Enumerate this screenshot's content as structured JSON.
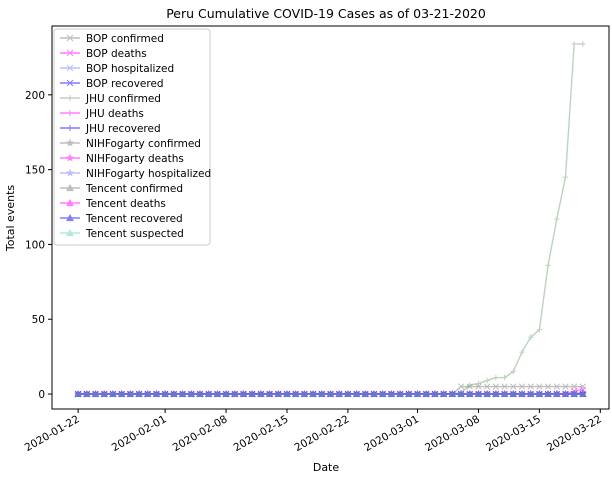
{
  "chart_data": {
    "type": "line",
    "title": "Peru Cumulative COVID-19 Cases as of 03-21-2020",
    "xlabel": "Date",
    "ylabel": "Total events",
    "x_type": "date",
    "x_range": [
      "2020-01-19",
      "2020-03-23"
    ],
    "y_range": [
      -10,
      246
    ],
    "x_ticks": [
      "2020-01-22",
      "2020-02-01",
      "2020-02-08",
      "2020-02-15",
      "2020-02-22",
      "2020-03-01",
      "2020-03-08",
      "2020-03-15",
      "2020-03-22"
    ],
    "y_ticks": [
      0,
      50,
      100,
      150,
      200
    ],
    "grid": false,
    "legend_position": "upper left",
    "series": [
      {
        "name": "BOP confirmed",
        "color": "#7f7f7f",
        "marker": "x",
        "start": "2020-01-22",
        "end": "2020-03-20",
        "points": [
          [
            "2020-03-06",
            5
          ],
          [
            "2020-03-20",
            5
          ]
        ]
      },
      {
        "name": "BOP deaths",
        "color": "#ff00ff",
        "marker": "x",
        "start": "2020-01-22",
        "end": "2020-03-20",
        "points": [
          [
            "2020-03-18",
            0
          ],
          [
            "2020-03-19",
            2
          ],
          [
            "2020-03-20",
            3
          ]
        ]
      },
      {
        "name": "BOP hospitalized",
        "color": "#7f7fff",
        "marker": "x",
        "start": "2020-01-22",
        "end": "2020-03-20",
        "points": []
      },
      {
        "name": "BOP recovered",
        "color": "#0000ff",
        "marker": "x",
        "start": "2020-01-22",
        "end": "2020-03-20",
        "points": []
      },
      {
        "name": "JHU confirmed",
        "color": "#7fa77f",
        "marker": "+",
        "start": "2020-01-22",
        "end": "2020-03-20",
        "points": [
          [
            "2020-03-05",
            0
          ],
          [
            "2020-03-06",
            1
          ],
          [
            "2020-03-07",
            6
          ],
          [
            "2020-03-08",
            7
          ],
          [
            "2020-03-09",
            9
          ],
          [
            "2020-03-10",
            11
          ],
          [
            "2020-03-11",
            11
          ],
          [
            "2020-03-12",
            15
          ],
          [
            "2020-03-13",
            28
          ],
          [
            "2020-03-14",
            38
          ],
          [
            "2020-03-15",
            43
          ],
          [
            "2020-03-16",
            86
          ],
          [
            "2020-03-17",
            117
          ],
          [
            "2020-03-18",
            145
          ],
          [
            "2020-03-19",
            234
          ],
          [
            "2020-03-20",
            234
          ]
        ]
      },
      {
        "name": "JHU deaths",
        "color": "#ff00ff",
        "marker": "+",
        "start": "2020-01-22",
        "end": "2020-03-20",
        "points": []
      },
      {
        "name": "JHU recovered",
        "color": "#0000ff",
        "marker": "+",
        "start": "2020-01-22",
        "end": "2020-03-20",
        "points": [
          [
            "2020-03-19",
            0
          ],
          [
            "2020-03-20",
            1
          ]
        ]
      },
      {
        "name": "NIHFogarty confirmed",
        "color": "#7f7f7f",
        "marker": "*",
        "start": "2020-01-22",
        "end": "2020-03-20",
        "points": []
      },
      {
        "name": "NIHFogarty deaths",
        "color": "#ff00ff",
        "marker": "*",
        "start": "2020-01-22",
        "end": "2020-03-20",
        "points": []
      },
      {
        "name": "NIHFogarty hospitalized",
        "color": "#7f7fff",
        "marker": "*",
        "start": "2020-01-22",
        "end": "2020-03-20",
        "points": []
      },
      {
        "name": "Tencent confirmed",
        "color": "#7f7f7f",
        "marker": "^",
        "start": "2020-01-22",
        "end": "2020-03-20",
        "points": []
      },
      {
        "name": "Tencent deaths",
        "color": "#ff00ff",
        "marker": "^",
        "start": "2020-01-22",
        "end": "2020-03-20",
        "points": []
      },
      {
        "name": "Tencent recovered",
        "color": "#0000ff",
        "marker": "^",
        "start": "2020-01-22",
        "end": "2020-03-20",
        "points": []
      },
      {
        "name": "Tencent suspected",
        "color": "#66d9b0",
        "marker": "^",
        "start": "2020-01-22",
        "end": "2020-03-20",
        "points": []
      }
    ]
  }
}
